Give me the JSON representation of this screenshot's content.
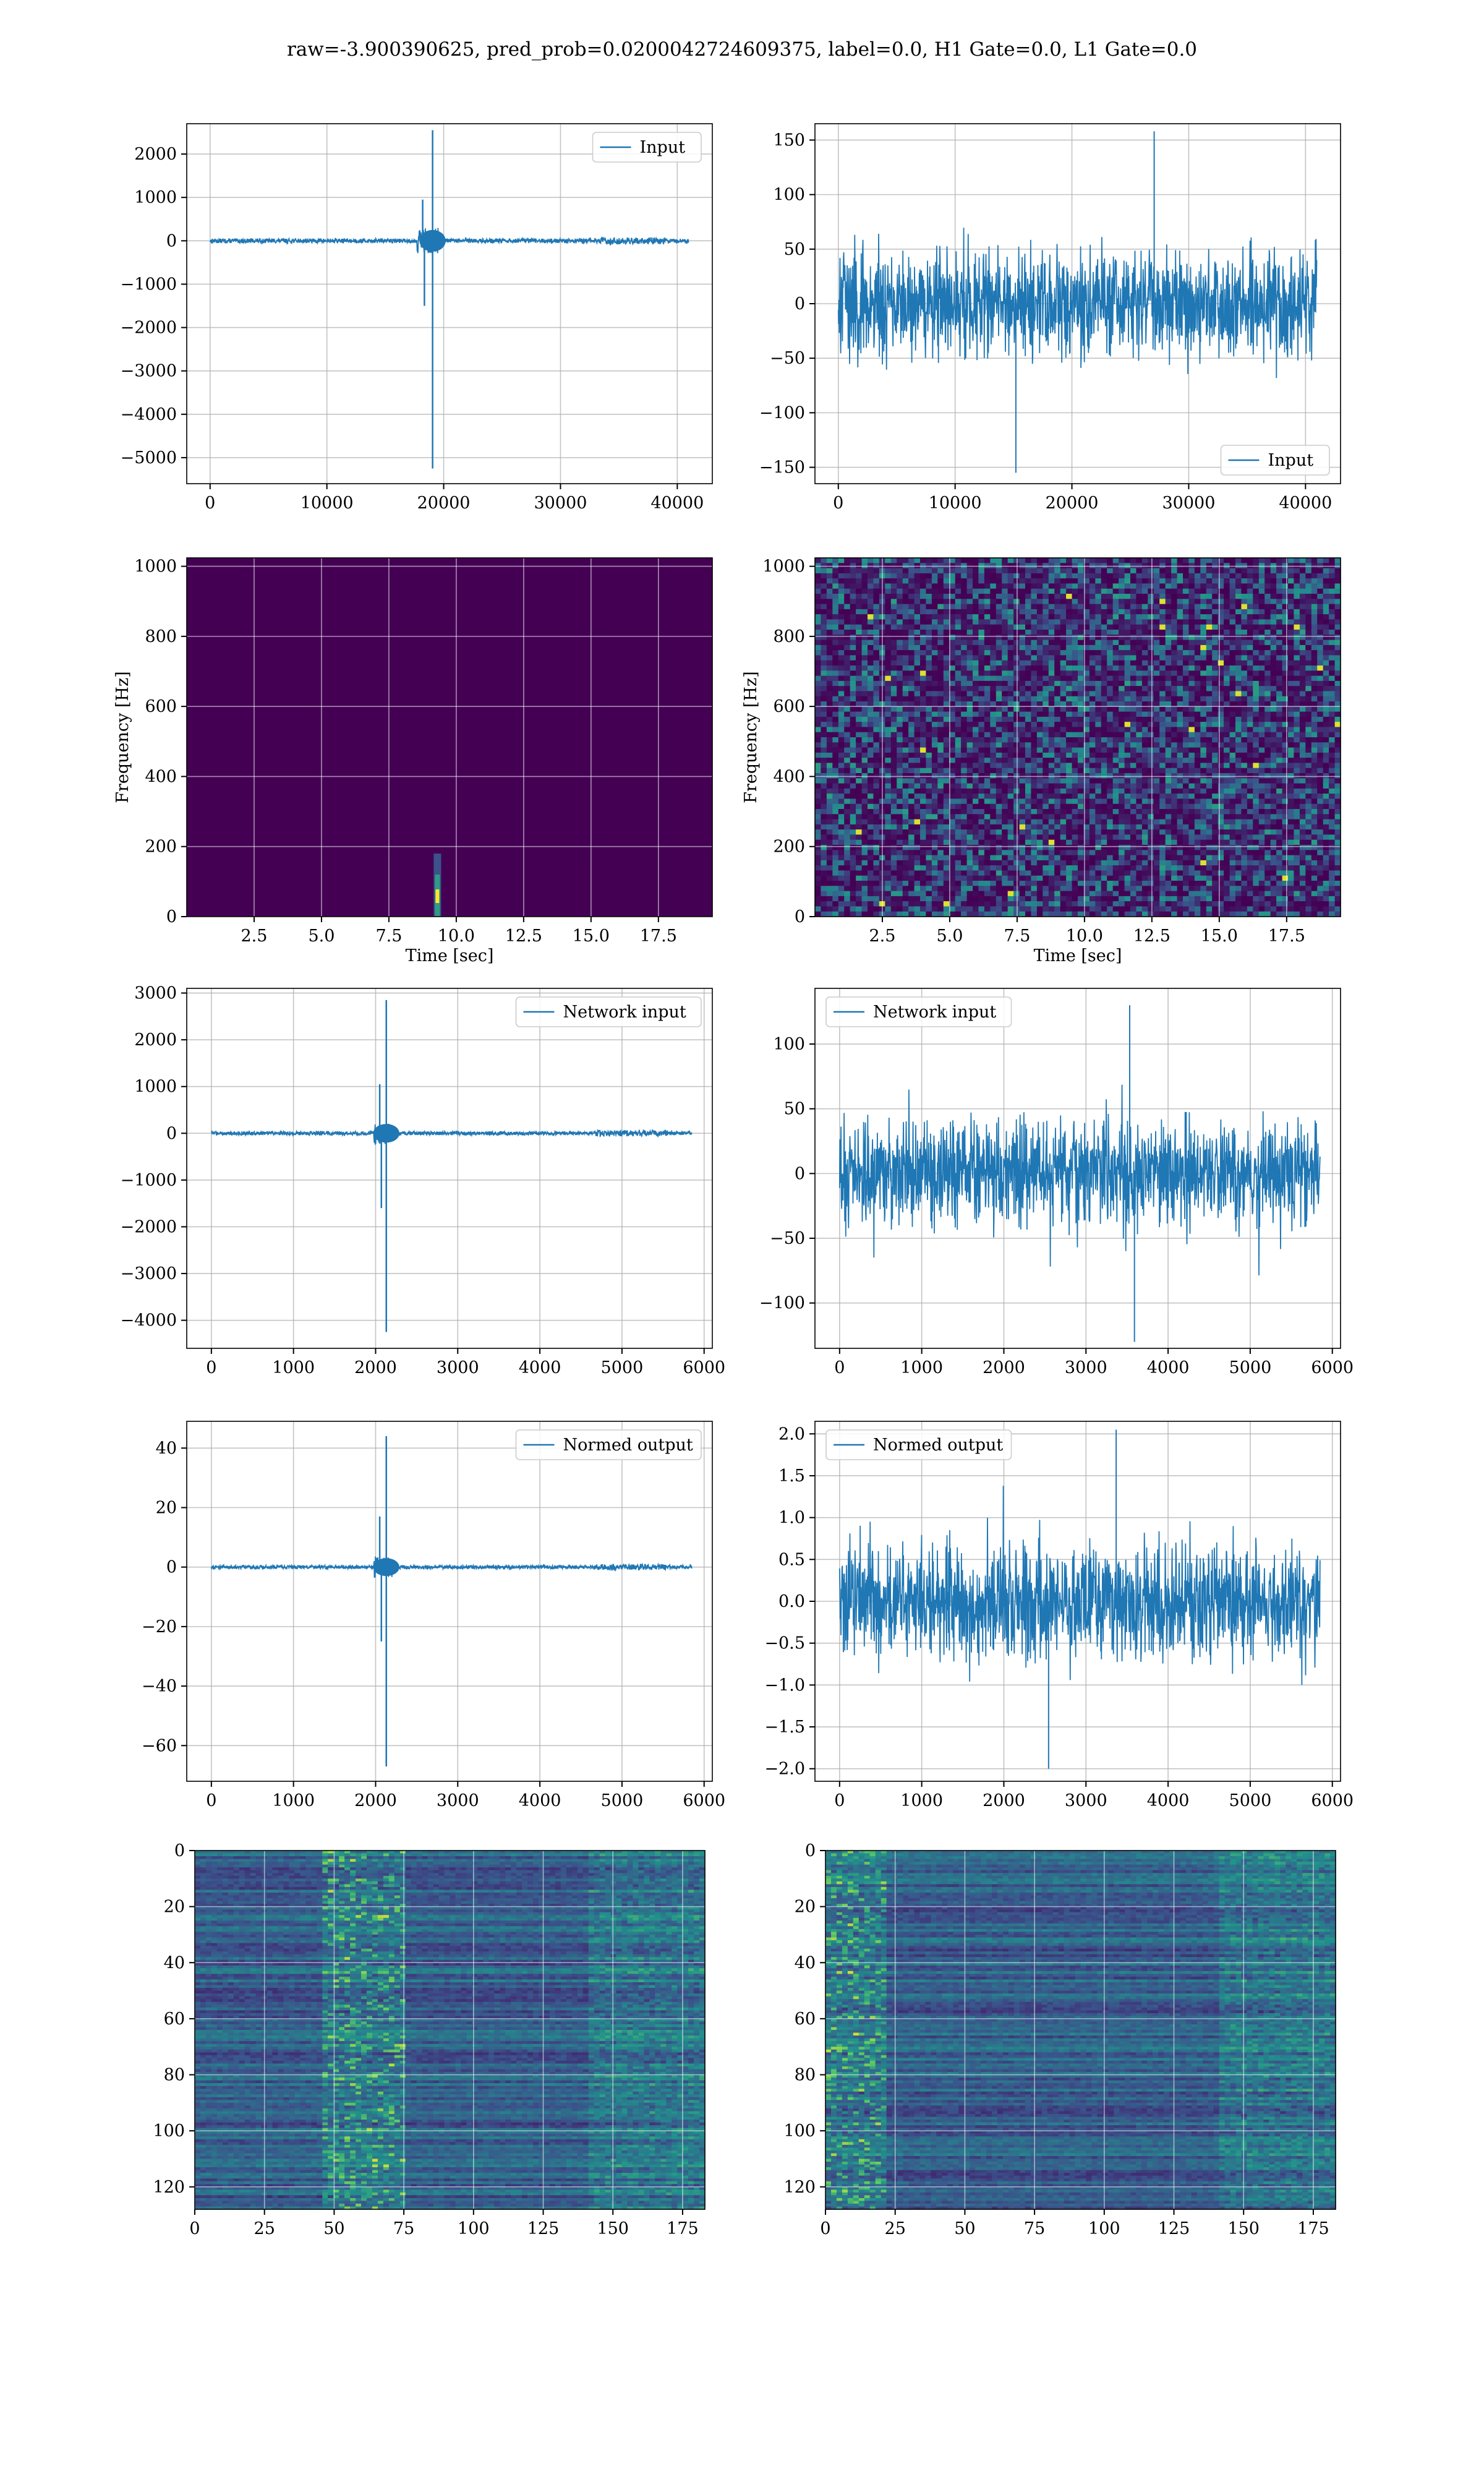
{
  "suptitle": "raw=-3.900390625, pred_prob=0.0200042724609375, label=0.0, H1 Gate=0.0, L1 Gate=0.0",
  "colors": {
    "line": "#1f77b4",
    "grid": "#b0b0b0",
    "viridis_low": "#440154",
    "viridis_high": "#fde725"
  },
  "chart_data": [
    {
      "id": "h1-input",
      "type": "line",
      "legend": "Input",
      "legend_loc": "upper right",
      "xlim": [
        -2000,
        43000
      ],
      "ylim": [
        -5600,
        2700
      ],
      "xticks": [
        0,
        10000,
        20000,
        30000,
        40000
      ],
      "yticks": [
        2000,
        1000,
        0,
        -1000,
        -2000,
        -3000,
        -4000,
        -5000
      ],
      "xticklabels": [
        "0",
        "10000",
        "20000",
        "30000",
        "40000"
      ],
      "yticklabels": [
        "2000",
        "1000",
        "0",
        "−1000",
        "−2000",
        "−3000",
        "−4000",
        "−5000"
      ],
      "n_samples": 40960,
      "noise_amp": 50,
      "events": [
        {
          "x": 18200,
          "y": 950
        },
        {
          "x": 18350,
          "y": -1500
        },
        {
          "x": 19050,
          "y": 2550
        },
        {
          "x": 19050,
          "y": -5250
        }
      ],
      "xlabel": "",
      "ylabel": ""
    },
    {
      "id": "l1-input",
      "type": "line",
      "legend": "Input",
      "legend_loc": "lower right",
      "xlim": [
        -2000,
        43000
      ],
      "ylim": [
        -165,
        165
      ],
      "xticks": [
        0,
        10000,
        20000,
        30000,
        40000
      ],
      "yticks": [
        150,
        100,
        50,
        0,
        -50,
        -100,
        -150
      ],
      "xticklabels": [
        "0",
        "10000",
        "20000",
        "30000",
        "40000"
      ],
      "yticklabels": [
        "150",
        "100",
        "50",
        "0",
        "−50",
        "−100",
        "−150"
      ],
      "n_samples": 40960,
      "noise_amp": 90,
      "peak": 158,
      "trough": -155,
      "xlabel": "",
      "ylabel": ""
    },
    {
      "id": "h1-spectrogram",
      "type": "heatmap",
      "xlim": [
        0,
        19.5
      ],
      "ylim": [
        0,
        1024
      ],
      "xticks": [
        2.5,
        5.0,
        7.5,
        10.0,
        12.5,
        15.0,
        17.5
      ],
      "yticks": [
        1000,
        800,
        600,
        400,
        200,
        0
      ],
      "xticklabels": [
        "2.5",
        "5.0",
        "7.5",
        "10.0",
        "12.5",
        "15.0",
        "17.5"
      ],
      "yticklabels": [
        "1000",
        "800",
        "600",
        "400",
        "200",
        "0"
      ],
      "xlabel": "Time [sec]",
      "ylabel": "Frequency [Hz]",
      "hotspot": {
        "x": 9.3,
        "y": 60
      }
    },
    {
      "id": "l1-spectrogram",
      "type": "heatmap",
      "xlim": [
        0,
        19.5
      ],
      "ylim": [
        0,
        1024
      ],
      "xticks": [
        2.5,
        5.0,
        7.5,
        10.0,
        12.5,
        15.0,
        17.5
      ],
      "yticks": [
        1000,
        800,
        600,
        400,
        200,
        0
      ],
      "xticklabels": [
        "2.5",
        "5.0",
        "7.5",
        "10.0",
        "12.5",
        "15.0",
        "17.5"
      ],
      "yticklabels": [
        "1000",
        "800",
        "600",
        "400",
        "200",
        "0"
      ],
      "xlabel": "Time [sec]",
      "ylabel": "Frequency [Hz]"
    },
    {
      "id": "h1-network-input",
      "type": "line",
      "legend": "Network input",
      "legend_loc": "upper right",
      "xlim": [
        -300,
        6100
      ],
      "ylim": [
        -4600,
        3100
      ],
      "xticks": [
        0,
        1000,
        2000,
        3000,
        4000,
        5000,
        6000
      ],
      "yticks": [
        3000,
        2000,
        1000,
        0,
        -1000,
        -2000,
        -3000,
        -4000
      ],
      "xticklabels": [
        "0",
        "1000",
        "2000",
        "3000",
        "4000",
        "5000",
        "6000"
      ],
      "yticklabels": [
        "3000",
        "2000",
        "1000",
        "0",
        "−1000",
        "−2000",
        "−3000",
        "−4000"
      ],
      "n_samples": 5850,
      "noise_amp": 40,
      "events": [
        {
          "x": 2050,
          "y": 1050
        },
        {
          "x": 2070,
          "y": -1600
        },
        {
          "x": 2130,
          "y": 2850
        },
        {
          "x": 2130,
          "y": -4250
        }
      ],
      "xlabel": "",
      "ylabel": ""
    },
    {
      "id": "l1-network-input",
      "type": "line",
      "legend": "Network input",
      "legend_loc": "upper left",
      "xlim": [
        -300,
        6100
      ],
      "ylim": [
        -135,
        143
      ],
      "xticks": [
        0,
        1000,
        2000,
        3000,
        4000,
        5000,
        6000
      ],
      "yticks": [
        100,
        50,
        0,
        -50,
        -100
      ],
      "xticklabels": [
        "0",
        "1000",
        "2000",
        "3000",
        "4000",
        "5000",
        "6000"
      ],
      "yticklabels": [
        "100",
        "50",
        "0",
        "−50",
        "−100"
      ],
      "n_samples": 5850,
      "noise_amp": 70,
      "peak": 130,
      "trough": -130,
      "xlabel": "",
      "ylabel": ""
    },
    {
      "id": "h1-normed-output",
      "type": "line",
      "legend": "Normed output",
      "legend_loc": "upper right",
      "xlim": [
        -300,
        6100
      ],
      "ylim": [
        -72,
        49
      ],
      "xticks": [
        0,
        1000,
        2000,
        3000,
        4000,
        5000,
        6000
      ],
      "yticks": [
        40,
        20,
        0,
        -20,
        -40,
        -60
      ],
      "xticklabels": [
        "0",
        "1000",
        "2000",
        "3000",
        "4000",
        "5000",
        "6000"
      ],
      "yticklabels": [
        "40",
        "20",
        "0",
        "−20",
        "−40",
        "−60"
      ],
      "n_samples": 5850,
      "noise_amp": 0.6,
      "events": [
        {
          "x": 2050,
          "y": 17
        },
        {
          "x": 2070,
          "y": -25
        },
        {
          "x": 2130,
          "y": 44
        },
        {
          "x": 2130,
          "y": -67
        }
      ],
      "xlabel": "",
      "ylabel": ""
    },
    {
      "id": "l1-normed-output",
      "type": "line",
      "legend": "Normed output",
      "legend_loc": "upper left",
      "xlim": [
        -300,
        6100
      ],
      "ylim": [
        -2.15,
        2.15
      ],
      "xticks": [
        0,
        1000,
        2000,
        3000,
        4000,
        5000,
        6000
      ],
      "yticks": [
        2.0,
        1.5,
        1.0,
        0.5,
        0.0,
        -0.5,
        -1.0,
        -1.5,
        -2.0
      ],
      "xticklabels": [
        "0",
        "1000",
        "2000",
        "3000",
        "4000",
        "5000",
        "6000"
      ],
      "yticklabels": [
        "2.0",
        "1.5",
        "1.0",
        "0.5",
        "0.0",
        "−0.5",
        "−1.0",
        "−1.5",
        "−2.0"
      ],
      "n_samples": 5850,
      "noise_amp": 1.2,
      "peak": 2.05,
      "trough": -2.0,
      "xlabel": "",
      "ylabel": ""
    },
    {
      "id": "h1-feature-map",
      "type": "heatmap",
      "xlim": [
        0,
        183
      ],
      "ylim": [
        128,
        0
      ],
      "xticks": [
        0,
        25,
        50,
        75,
        100,
        125,
        150,
        175
      ],
      "yticks": [
        0,
        20,
        40,
        60,
        80,
        100,
        120
      ],
      "xticklabels": [
        "0",
        "25",
        "50",
        "75",
        "100",
        "125",
        "150",
        "175"
      ],
      "yticklabels": [
        "0",
        "20",
        "40",
        "60",
        "80",
        "100",
        "120"
      ],
      "xlabel": "",
      "ylabel": "",
      "bright_region": [
        45,
        75
      ]
    },
    {
      "id": "l1-feature-map",
      "type": "heatmap",
      "xlim": [
        0,
        183
      ],
      "ylim": [
        128,
        0
      ],
      "xticks": [
        0,
        25,
        50,
        75,
        100,
        125,
        150,
        175
      ],
      "yticks": [
        0,
        20,
        40,
        60,
        80,
        100,
        120
      ],
      "xticklabels": [
        "0",
        "25",
        "50",
        "75",
        "100",
        "125",
        "150",
        "175"
      ],
      "yticklabels": [
        "0",
        "20",
        "40",
        "60",
        "80",
        "100",
        "120"
      ],
      "xlabel": "",
      "ylabel": "",
      "bright_region": [
        0,
        20
      ]
    }
  ]
}
